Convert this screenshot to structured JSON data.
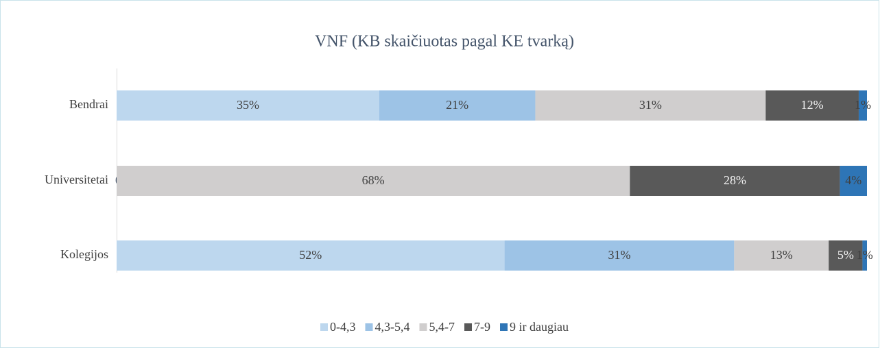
{
  "chart_data": {
    "type": "stacked-horizontal-bar",
    "title": "VNF (KB skaičiuotas pagal KE tvarką)",
    "categories": [
      "Bendrai",
      "Universitetai",
      "Kolegijos"
    ],
    "xlim": [
      0,
      100
    ],
    "legend": "bottom",
    "series": [
      {
        "name": "0-4,3",
        "color": "#bdd7ee",
        "values": [
          35.0,
          0,
          51.7
        ],
        "value_labels": [
          "35%",
          "0%",
          "52%"
        ]
      },
      {
        "name": "4,3-5,4",
        "color": "#9dc3e6",
        "values": [
          20.8,
          null,
          30.6
        ],
        "value_labels": [
          "21%",
          null,
          "31%"
        ]
      },
      {
        "name": "5,4-7",
        "color": "#d0cece",
        "values": [
          30.7,
          68.4,
          12.6
        ],
        "value_labels": [
          "31%",
          "68%",
          "13%"
        ]
      },
      {
        "name": "7-9",
        "color": "#595959",
        "values": [
          12.4,
          28.0,
          4.5
        ],
        "value_labels": [
          "12%",
          "28%",
          "5%"
        ]
      },
      {
        "name": "9 ir daugiau",
        "color": "#2e75b6",
        "values": [
          1.1,
          3.6,
          0.6
        ],
        "value_labels": [
          "1%",
          "4%",
          "1%"
        ]
      }
    ]
  }
}
